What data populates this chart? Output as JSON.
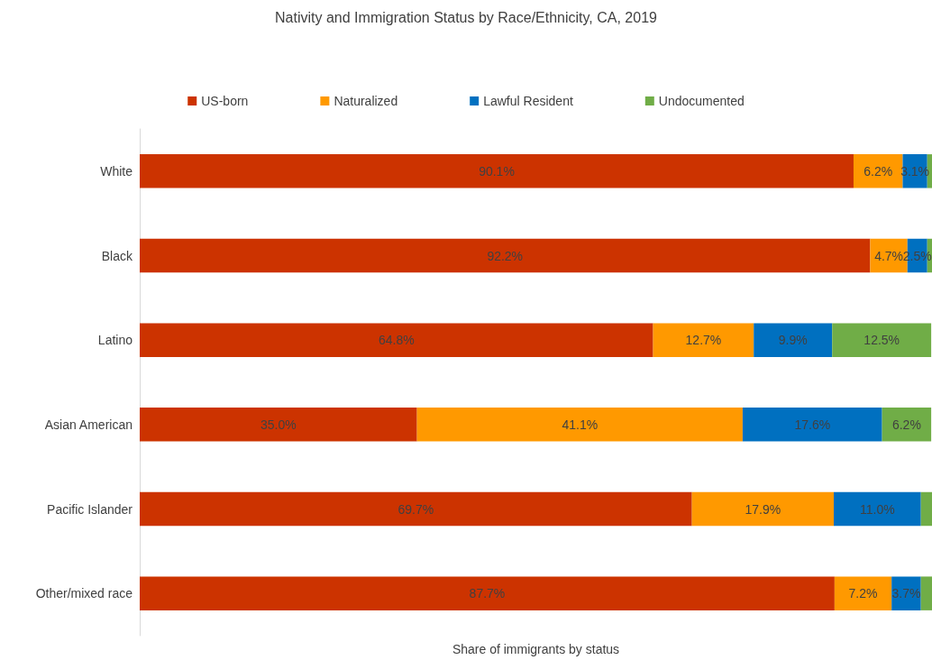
{
  "chart_data": {
    "type": "bar",
    "orientation": "horizontal",
    "stacked": true,
    "title": "Nativity and Immigration Status by Race/Ethnicity, CA, 2019",
    "xlabel": "Share of immigrants by status",
    "categories": [
      "White",
      "Black",
      "Latino",
      "Asian American",
      "Pacific Islander",
      "Other/mixed race"
    ],
    "series": [
      {
        "name": "US-born",
        "color": "#cc3300",
        "values": [
          90.1,
          92.2,
          64.8,
          35.0,
          69.7,
          87.7
        ],
        "value_labels": [
          "90.1%",
          "92.2%",
          "64.8%",
          "35.0%",
          "69.7%",
          "87.7%"
        ]
      },
      {
        "name": "Naturalized",
        "color": "#ff9900",
        "values": [
          6.2,
          4.7,
          12.7,
          41.1,
          17.9,
          7.2
        ],
        "value_labels": [
          "6.2%",
          "4.7%",
          "12.7%",
          "41.1%",
          "17.9%",
          "7.2%"
        ]
      },
      {
        "name": "Lawful Resident",
        "color": "#0070c0",
        "values": [
          3.1,
          2.5,
          9.9,
          17.6,
          11.0,
          3.7
        ],
        "value_labels": [
          "3.1%",
          "2.5%",
          "9.9%",
          "17.6%",
          "11.0%",
          "3.7%"
        ]
      },
      {
        "name": "Undocumented",
        "color": "#70ad47",
        "values": [
          0.6,
          0.6,
          12.5,
          6.2,
          1.4,
          1.4
        ],
        "value_labels": [
          null,
          null,
          "12.5%",
          "6.2%",
          null,
          null
        ]
      }
    ],
    "xlim": [
      0,
      100
    ],
    "tick_labels": "y",
    "grid": false,
    "legend": "top"
  }
}
